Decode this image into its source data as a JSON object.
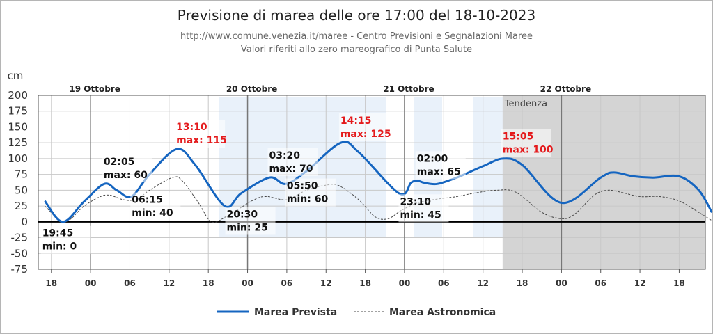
{
  "chart_data": {
    "type": "line",
    "title": "Previsione di marea delle ore 17:00 del 18-10-2023",
    "subtitle_1": "http://www.comune.venezia.it/maree - Centro Previsioni e Segnalazioni Maree",
    "subtitle_2": "Valori riferiti allo zero mareografico di Punta Salute",
    "ylabel": "cm",
    "ylim": [
      -75,
      200
    ],
    "yticks": [
      200,
      175,
      150,
      125,
      100,
      75,
      50,
      25,
      0,
      -25,
      -50,
      -75
    ],
    "xlim": [
      -8,
      94
    ],
    "x_unit": "hours from 19 Ottobre 00:00",
    "x_ticks": [
      {
        "x": -6,
        "label": "18"
      },
      {
        "x": 0,
        "label": "00"
      },
      {
        "x": 6,
        "label": "06"
      },
      {
        "x": 12,
        "label": "12"
      },
      {
        "x": 18,
        "label": "18"
      },
      {
        "x": 24,
        "label": "00"
      },
      {
        "x": 30,
        "label": "06"
      },
      {
        "x": 36,
        "label": "12"
      },
      {
        "x": 42,
        "label": "18"
      },
      {
        "x": 48,
        "label": "00"
      },
      {
        "x": 54,
        "label": "06"
      },
      {
        "x": 60,
        "label": "12"
      },
      {
        "x": 66,
        "label": "18"
      },
      {
        "x": 72,
        "label": "00"
      },
      {
        "x": 78,
        "label": "06"
      },
      {
        "x": 84,
        "label": "12"
      },
      {
        "x": 90,
        "label": "18"
      },
      {
        "x": 96,
        "label": "00"
      }
    ],
    "days": [
      {
        "x": 0,
        "label": "19 Ottobre"
      },
      {
        "x": 24,
        "label": "20 Ottobre"
      },
      {
        "x": 48,
        "label": "21 Ottobre"
      },
      {
        "x": 72,
        "label": "22 Ottobre"
      }
    ],
    "tendenza": {
      "from": 63,
      "label": "Tendenza"
    },
    "grid": true,
    "legend_position": "bottom",
    "series": [
      {
        "name": "Marea Prevista",
        "color": "#1565c0",
        "style": "solid",
        "points": [
          [
            -7,
            33
          ],
          [
            -4.25,
            0
          ],
          [
            -1,
            32
          ],
          [
            2.08,
            60
          ],
          [
            4,
            50
          ],
          [
            6.25,
            40
          ],
          [
            9,
            75
          ],
          [
            13.17,
            115
          ],
          [
            16,
            90
          ],
          [
            20.5,
            25
          ],
          [
            23,
            45
          ],
          [
            27.33,
            70
          ],
          [
            29.83,
            60
          ],
          [
            33,
            80
          ],
          [
            38.25,
            125
          ],
          [
            41,
            110
          ],
          [
            47.17,
            45
          ],
          [
            49,
            62
          ],
          [
            50,
            65
          ],
          [
            51,
            62
          ],
          [
            53,
            60
          ],
          [
            56,
            70
          ],
          [
            60,
            88
          ],
          [
            63.08,
            100
          ],
          [
            66,
            90
          ],
          [
            72,
            30
          ],
          [
            78,
            70
          ],
          [
            80,
            78
          ],
          [
            83,
            72
          ],
          [
            86,
            70
          ],
          [
            90,
            72
          ],
          [
            93,
            50
          ],
          [
            95,
            15
          ]
        ]
      },
      {
        "name": "Marea Astronomica",
        "color": "#444444",
        "style": "dashed",
        "points": [
          [
            -7,
            25
          ],
          [
            -4,
            0
          ],
          [
            -1,
            25
          ],
          [
            1.5,
            40
          ],
          [
            3,
            42
          ],
          [
            5,
            35
          ],
          [
            7,
            35
          ],
          [
            9,
            50
          ],
          [
            12.5,
            70
          ],
          [
            14,
            65
          ],
          [
            16.5,
            30
          ],
          [
            18.5,
            0
          ],
          [
            21,
            10
          ],
          [
            25,
            35
          ],
          [
            27,
            40
          ],
          [
            30,
            35
          ],
          [
            33,
            50
          ],
          [
            36,
            58
          ],
          [
            38,
            57
          ],
          [
            41,
            35
          ],
          [
            43.5,
            8
          ],
          [
            45.5,
            5
          ],
          [
            47.5,
            18
          ],
          [
            50,
            30
          ],
          [
            53,
            36
          ],
          [
            56,
            40
          ],
          [
            59,
            46
          ],
          [
            62,
            50
          ],
          [
            65,
            47
          ],
          [
            69,
            15
          ],
          [
            72,
            5
          ],
          [
            74,
            12
          ],
          [
            77,
            42
          ],
          [
            79,
            50
          ],
          [
            81,
            47
          ],
          [
            84,
            40
          ],
          [
            87,
            40
          ],
          [
            90,
            33
          ],
          [
            93,
            15
          ],
          [
            95,
            2
          ]
        ]
      }
    ],
    "annotations": [
      {
        "x": -7.5,
        "y": -12,
        "time": "19:45",
        "value": "min: 0",
        "color": "#111111",
        "dir": "below"
      },
      {
        "x": 2.1,
        "y": 68,
        "time": "02:05",
        "value": "max: 60",
        "color": "#111111",
        "dir": "above"
      },
      {
        "x": 6.3,
        "y": 30,
        "time": "06:15",
        "value": "min: 40",
        "color": "#111111",
        "dir": "right-below"
      },
      {
        "x": 13.2,
        "y": 123,
        "time": "13:10",
        "value": "max: 115",
        "color": "#e41a1c",
        "dir": "above"
      },
      {
        "x": 20.7,
        "y": 18,
        "time": "20:30",
        "value": "min: 25",
        "color": "#111111",
        "dir": "below"
      },
      {
        "x": 27.4,
        "y": 78,
        "time": "03:20",
        "value": "max: 70",
        "color": "#111111",
        "dir": "above"
      },
      {
        "x": 30.0,
        "y": 52,
        "time": "05:50",
        "value": "min: 60",
        "color": "#111111",
        "dir": "right-below"
      },
      {
        "x": 38.3,
        "y": 133,
        "time": "14:15",
        "value": "max: 125",
        "color": "#e41a1c",
        "dir": "above"
      },
      {
        "x": 47.2,
        "y": 38,
        "time": "23:10",
        "value": "min: 45",
        "color": "#111111",
        "dir": "below"
      },
      {
        "x": 50.0,
        "y": 73,
        "time": "02:00",
        "value": "max: 65",
        "color": "#111111",
        "dir": "above"
      },
      {
        "x": 63.1,
        "y": 108,
        "time": "15:05",
        "value": "max: 100",
        "color": "#e41a1c",
        "dir": "above"
      }
    ]
  }
}
